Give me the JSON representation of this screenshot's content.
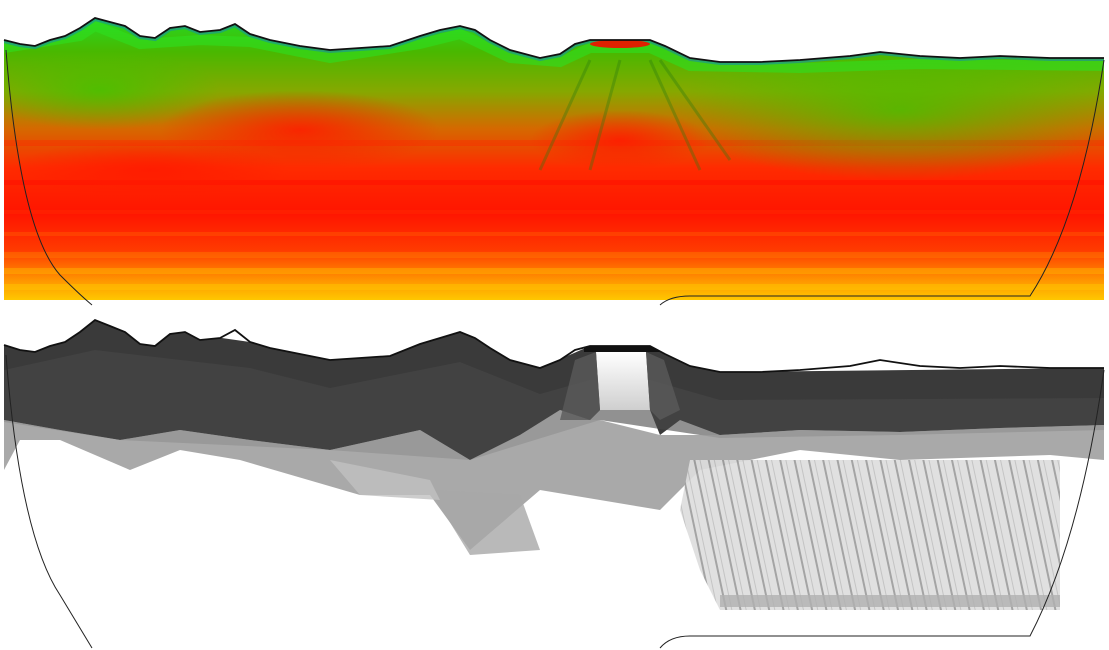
{
  "panels": [
    {
      "id": "velocity",
      "style": "color-tomogram"
    },
    {
      "id": "coverage",
      "style": "grayscale-density"
    }
  ],
  "colors": {
    "background": "#ffffff",
    "topography_line": "#111111",
    "boundary_line": "#222222",
    "velocity_ramp": [
      "#1a5fa0",
      "#18b6b0",
      "#27d61f",
      "#49b800",
      "#86a800",
      "#d46a00",
      "#ff2b00",
      "#ff1500",
      "#ff3a00",
      "#ff9600",
      "#ffd400"
    ],
    "coverage_ramp": [
      "#111111",
      "#3a3a3a",
      "#6a6a6a",
      "#9a9a9a",
      "#cfcfcf",
      "#ffffff"
    ]
  }
}
